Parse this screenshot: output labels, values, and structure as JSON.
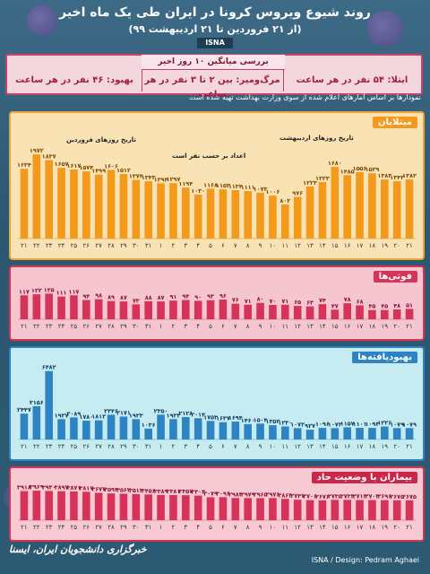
{
  "header": {
    "title": "روند شیوع ویروس کرونا در ایران طی یک ماه اخیر",
    "subtitle": "(از ۲۱ فروردین تا ۲۱ اردیبهشت ۹۹)",
    "logo_text": "ISNA"
  },
  "summary": {
    "heading": "بررسی میانگین ۱۰ روز اخیر",
    "infection": "ابتلا: ۵۴ نفر در هر ساعت",
    "death": "مرگ‌ومیر: بین ۲ تا ۳ نفر در هر ساعت",
    "recovery": "بهبود: ۴۶ نفر در هر ساعت"
  },
  "note": "نمودارها بر اساس آمارهای اعلام شده از سوی وزارت بهداشت تهیه شده است",
  "footer": {
    "left": "خبرگزاری دانشجویان ایران، ایسنا",
    "right": "ISNA / Design: Pedram Aghaei"
  },
  "colors": {
    "bar_orange": "#f39a1c",
    "bar_red": "#d5335a",
    "bar_blue": "#2e84c2",
    "panel_orange": "#f9e3b5",
    "panel_pink": "#f5c6cf",
    "panel_cyan": "#c6ecf2",
    "panel_rose": "#f7c9d2"
  },
  "hints": {
    "farvardin": "تاریخ روزهای فروردین",
    "ordibehesht": "تاریخ روزهای اردیبهشت",
    "unit": "اعداد بر حسب نفر است"
  },
  "chart_data": [
    {
      "type": "bar",
      "title": "مبتلایان",
      "categories": [
        "۲۱",
        "۲۲",
        "۲۳",
        "۲۴",
        "۲۵",
        "۲۶",
        "۲۷",
        "۲۸",
        "۲۹",
        "۳۰",
        "۳۱",
        "۱",
        "۲",
        "۳",
        "۴",
        "۵",
        "۶",
        "۷",
        "۸",
        "۹",
        "۱۰",
        "۱۱",
        "۱۲",
        "۱۳",
        "۱۴",
        "۱۵",
        "۱۶",
        "۱۷",
        "۱۸",
        "۱۹",
        "۲۰",
        "۲۱"
      ],
      "values": [
        1634,
        1972,
        1837,
        1657,
        1617,
        1574,
        1499,
        1606,
        1512,
        1374,
        1343,
        1294,
        1297,
        1194,
        1030,
        1168,
        1153,
        1134,
        1111,
        1073,
        1006,
        802,
        976,
        1223,
        1323,
        1680,
        1485,
        1556,
        1529,
        1383,
        1343,
        1383
      ],
      "value_labels": [
        "۱۶۳۴",
        "۱۹۷۲",
        "۱۸۳۷",
        "۱۶۵۷",
        "۱۶۱۷",
        "۱۵۷۴",
        "۱۴۹۹",
        "۱۶۰۶",
        "۱۵۱۲",
        "۱۳۷۴",
        "۱۳۴۳",
        "۱۲۹۴",
        "۱۲۹۷",
        "۱۱۹۴",
        "۱۰۳۰",
        "۱۱۶۸",
        "۱۱۵۳",
        "۱۱۳۴",
        "۱۱۱۱",
        "۱۰۷۳",
        "۱۰۰۶",
        "۸۰۲",
        "۹۷۶",
        "۱۲۲۳",
        "۱۳۲۳",
        "۱۶۸۰",
        "۱۴۸۵",
        "۱۵۵۶",
        "۱۵۲۹",
        "۱۳۸۳",
        "۱۳۴۳",
        "۱۳۸۳"
      ],
      "ylim": [
        0,
        2100
      ]
    },
    {
      "type": "bar",
      "title": "فوتی‌ها",
      "categories": [
        "۲۱",
        "۲۲",
        "۲۳",
        "۲۴",
        "۲۵",
        "۲۶",
        "۲۷",
        "۲۸",
        "۲۹",
        "۳۰",
        "۳۱",
        "۱",
        "۲",
        "۳",
        "۴",
        "۵",
        "۶",
        "۷",
        "۸",
        "۹",
        "۱۰",
        "۱۱",
        "۱۲",
        "۱۳",
        "۱۴",
        "۱۵",
        "۱۶",
        "۱۷",
        "۱۸",
        "۱۹",
        "۲۰",
        "۲۱"
      ],
      "values": [
        117,
        122,
        125,
        111,
        117,
        94,
        98,
        89,
        87,
        73,
        88,
        87,
        91,
        94,
        90,
        93,
        96,
        76,
        71,
        80,
        70,
        71,
        65,
        63,
        74,
        47,
        78,
        68,
        45,
        45,
        48,
        51
      ],
      "value_labels": [
        "۱۱۷",
        "۱۲۲",
        "۱۲۵",
        "۱۱۱",
        "۱۱۷",
        "۹۴",
        "۹۸",
        "۸۹",
        "۸۷",
        "۷۳",
        "۸۸",
        "۸۷",
        "۹۱",
        "۹۴",
        "۹۰",
        "۹۳",
        "۹۶",
        "۷۶",
        "۷۱",
        "۸۰",
        "۷۰",
        "۷۱",
        "۶۵",
        "۶۳",
        "۷۴",
        "۴۷",
        "۷۸",
        "۶۸",
        "۴۵",
        "۴۵",
        "۴۸",
        "۵۱"
      ],
      "ylim": [
        0,
        140
      ]
    },
    {
      "type": "bar",
      "title": "بهبودیافته‌ها",
      "categories": [
        "۲۱",
        "۲۲",
        "۲۳",
        "۲۴",
        "۲۵",
        "۲۶",
        "۲۷",
        "۲۸",
        "۲۹",
        "۳۰",
        "۳۱",
        "۱",
        "۲",
        "۳",
        "۴",
        "۵",
        "۶",
        "۷",
        "۸",
        "۹",
        "۱۰",
        "۱۱",
        "۱۲",
        "۱۳",
        "۱۴",
        "۱۵",
        "۱۶",
        "۱۷",
        "۱۸",
        "۱۹",
        "۲۰",
        "۲۱"
      ],
      "values": [
        2447,
        3156,
        6482,
        1927,
        2089,
        1780,
        1812,
        2346,
        2171,
        1923,
        1036,
        2350,
        1933,
        2128,
        2014,
        1753,
        1637,
        1694,
        1460,
        1504,
        1352,
        1230,
        1072,
        927,
        1096,
        1072,
        1157,
        1101,
        1093,
        1226,
        1079,
        1079
      ],
      "value_labels": [
        "۲۴۴۷",
        "۳۱۵۶",
        "۶۴۸۲",
        "۱۹۲۷",
        "۲۰۸۹",
        "۱۷۸۰",
        "۱۸۱۲",
        "۲۳۴۶",
        "۲۱۷۱",
        "۱۹۲۳",
        "۱۰۳۶",
        "۲۳۵۰",
        "۱۹۳۳",
        "۲۱۲۸",
        "۲۰۱۴",
        "۱۷۵۳",
        "۱۶۳۷",
        "۱۶۹۴",
        "۱۴۶۰",
        "۱۵۰۴",
        "۱۳۵۲",
        "۱۲۳۰",
        "۱۰۷۲",
        "۹۲۷",
        "۱۰۹۶",
        "۱۰۷۲",
        "۱۱۵۷",
        "۱۱۰۱",
        "۱۰۹۳",
        "۱۲۲۶",
        "۱۰۷۹",
        "۱۰۷۹"
      ],
      "ylim": [
        0,
        6800
      ]
    },
    {
      "type": "bar",
      "title": "بیماران با وضعیت حاد",
      "categories": [
        "۲۱",
        "۲۲",
        "۲۳",
        "۲۴",
        "۲۵",
        "۲۶",
        "۲۷",
        "۲۸",
        "۲۹",
        "۳۰",
        "۳۱",
        "۱",
        "۲",
        "۳",
        "۴",
        "۵",
        "۶",
        "۷",
        "۸",
        "۹",
        "۱۰",
        "۱۱",
        "۱۲",
        "۱۳",
        "۱۴",
        "۱۵",
        "۱۶",
        "۱۷",
        "۱۸",
        "۱۹",
        "۲۰",
        "۲۱"
      ],
      "values": [
        3918,
        3969,
        3930,
        3897,
        3871,
        3817,
        3677,
        3594,
        3563,
        3513,
        3456,
        3389,
        3381,
        3357,
        3303,
        3079,
        3096,
        2983,
        2979,
        2965,
        2976,
        2863,
        2747,
        2706,
        2676,
        2735,
        2733,
        2712,
        2703,
        2696,
        2675,
        2675
      ],
      "value_labels": [
        "۳۹۱۸",
        "۳۹۶۹",
        "۳۹۳۰",
        "۳۸۹۷",
        "۳۸۷۱",
        "۳۸۱۷",
        "۳۶۷۷",
        "۳۵۹۴",
        "۳۵۶۳",
        "۳۵۱۳",
        "۳۴۵۶",
        "۳۳۸۹",
        "۳۳۸۱",
        "۳۳۵۷",
        "۳۳۰۳",
        "۳۰۷۹",
        "۳۰۹۶",
        "۲۹۸۳",
        "۲۹۷۹",
        "۲۹۶۵",
        "۲۹۷۶",
        "۲۸۶۳",
        "۲۷۴۷",
        "۲۷۰۶",
        "۲۶۷۶",
        "۲۷۳۵",
        "۲۷۳۳",
        "۲۷۱۲",
        "۲۷۰۳",
        "۲۶۹۶",
        "۲۶۷۵",
        "۲۶۷۵"
      ],
      "ylim": [
        0,
        4100
      ]
    }
  ]
}
